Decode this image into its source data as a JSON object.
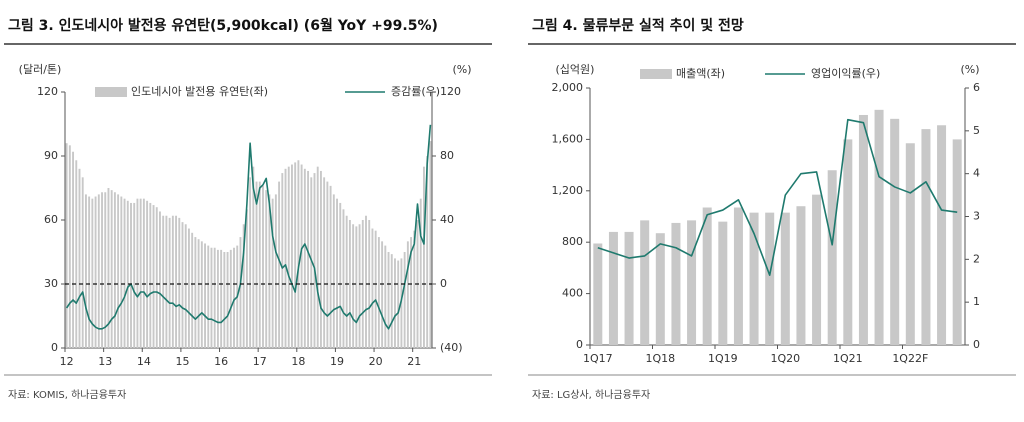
{
  "chart_data": [
    {
      "type": "combo",
      "title": "그림 3. 인도네시아 발전용 유연탄(5,900kcal) (6월 YoY +99.5%)",
      "ylabel": "(달러/톤)",
      "y2label": "(%)",
      "source": "자료: KOMIS, 하나금융투자",
      "categories": [
        "12",
        null,
        null,
        null,
        null,
        null,
        null,
        null,
        null,
        null,
        null,
        null,
        "13",
        null,
        null,
        null,
        null,
        null,
        null,
        null,
        null,
        null,
        null,
        null,
        "14",
        null,
        null,
        null,
        null,
        null,
        null,
        null,
        null,
        null,
        null,
        null,
        "15",
        null,
        null,
        null,
        null,
        null,
        null,
        null,
        null,
        null,
        null,
        null,
        "16",
        null,
        null,
        null,
        null,
        null,
        null,
        null,
        null,
        null,
        null,
        null,
        "17",
        null,
        null,
        null,
        null,
        null,
        null,
        null,
        null,
        null,
        null,
        null,
        "18",
        null,
        null,
        null,
        null,
        null,
        null,
        null,
        null,
        null,
        null,
        null,
        "19",
        null,
        null,
        null,
        null,
        null,
        null,
        null,
        null,
        null,
        null,
        null,
        "20",
        null,
        null,
        null,
        null,
        null,
        null,
        null,
        null,
        null,
        null,
        null,
        "21",
        null,
        null,
        null,
        null,
        null
      ],
      "series": [
        {
          "name": "인도네시아 발전용 유연탄(좌)",
          "color": "#c8c8c8",
          "type": "bar",
          "values": [
            96,
            95,
            92,
            88,
            84,
            80,
            72,
            71,
            70,
            71,
            72,
            73,
            73,
            75,
            74,
            73,
            72,
            71,
            70,
            69,
            68,
            68,
            70,
            70,
            70,
            69,
            68,
            67,
            66,
            64,
            62,
            62,
            61,
            62,
            62,
            61,
            59,
            58,
            56,
            54,
            52,
            51,
            50,
            49,
            48,
            47,
            47,
            46,
            46,
            45,
            45,
            46,
            47,
            48,
            52,
            58,
            65,
            80,
            85,
            78,
            78,
            76,
            74,
            72,
            70,
            72,
            78,
            82,
            84,
            85,
            86,
            87,
            88,
            86,
            84,
            83,
            80,
            82,
            85,
            83,
            80,
            78,
            76,
            72,
            70,
            68,
            65,
            62,
            60,
            58,
            57,
            58,
            60,
            62,
            60,
            56,
            55,
            52,
            50,
            48,
            45,
            44,
            42,
            41,
            42,
            45,
            50,
            52,
            55,
            60,
            70,
            85,
            90,
            97
          ]
        },
        {
          "name": "증감률(우)",
          "color": "#1f7a6e",
          "type": "line",
          "axis": "y2",
          "values": [
            -15,
            -12,
            -10,
            -12,
            -8,
            -5,
            -15,
            -22,
            -25,
            -27,
            -28,
            -28,
            -27,
            -25,
            -22,
            -20,
            -15,
            -12,
            -8,
            -2,
            0,
            -5,
            -8,
            -5,
            -5,
            -8,
            -6,
            -5,
            -5,
            -6,
            -8,
            -10,
            -12,
            -12,
            -14,
            -13,
            -15,
            -16,
            -18,
            -20,
            -22,
            -20,
            -18,
            -20,
            -22,
            -22,
            -23,
            -24,
            -24,
            -22,
            -20,
            -15,
            -10,
            -8,
            0,
            20,
            50,
            88,
            60,
            50,
            60,
            62,
            66,
            50,
            30,
            20,
            15,
            10,
            12,
            5,
            0,
            -5,
            10,
            22,
            25,
            20,
            15,
            10,
            -5,
            -15,
            -18,
            -20,
            -18,
            -16,
            -15,
            -14,
            -18,
            -20,
            -18,
            -22,
            -24,
            -20,
            -18,
            -16,
            -15,
            -12,
            -10,
            -15,
            -20,
            -25,
            -28,
            -24,
            -20,
            -18,
            -10,
            0,
            10,
            20,
            25,
            50,
            30,
            25,
            75,
            99.5
          ]
        }
      ],
      "ylim": [
        0,
        120
      ],
      "yticks": [
        0,
        30,
        60,
        90,
        120
      ],
      "y2lim": [
        -40,
        120
      ],
      "y2ticks": [
        {
          "value": -40,
          "label": "(40)"
        },
        0,
        40,
        80,
        120
      ],
      "reference_lines": [
        {
          "axis": "y2",
          "value": 0,
          "style": "dashed"
        }
      ],
      "grid": false
    },
    {
      "type": "combo",
      "title": "그림 4. 물류부문 실적 추이 및 전망",
      "ylabel": "(십억원)",
      "y2label": "(%)",
      "source": "자료: LG상사, 하나금융투자",
      "categories": [
        "1Q17",
        null,
        null,
        null,
        "1Q18",
        null,
        null,
        null,
        "1Q19",
        null,
        null,
        null,
        "1Q20",
        null,
        null,
        null,
        "1Q21",
        null,
        null,
        null,
        "1Q22F",
        null,
        null,
        null
      ],
      "series": [
        {
          "name": "매출액(좌)",
          "color": "#c8c8c8",
          "type": "bar",
          "values": [
            790,
            880,
            880,
            970,
            870,
            950,
            970,
            1070,
            960,
            1070,
            1030,
            1030,
            1030,
            1080,
            1170,
            1360,
            1600,
            1790,
            1830,
            1760,
            1570,
            1680,
            1710,
            1600
          ]
        },
        {
          "name": "영업이익률(우)",
          "color": "#1f7a6e",
          "type": "line",
          "axis": "y2",
          "values": [
            2.27,
            2.15,
            2.03,
            2.08,
            2.36,
            2.27,
            2.08,
            3.04,
            3.15,
            3.39,
            2.6,
            1.63,
            3.5,
            4.0,
            4.04,
            2.34,
            5.26,
            5.19,
            3.93,
            3.69,
            3.55,
            3.81,
            3.15,
            3.1
          ]
        }
      ],
      "ylim": [
        0,
        2000
      ],
      "yticks": [
        0,
        400,
        800,
        {
          "value": 1200,
          "label": "1,200"
        },
        {
          "value": 1600,
          "label": "1,600"
        },
        {
          "value": 2000,
          "label": "2,000"
        }
      ],
      "y2lim": [
        0,
        6
      ],
      "y2ticks": [
        0,
        1,
        2,
        3,
        4,
        5,
        6
      ],
      "grid": false
    }
  ]
}
